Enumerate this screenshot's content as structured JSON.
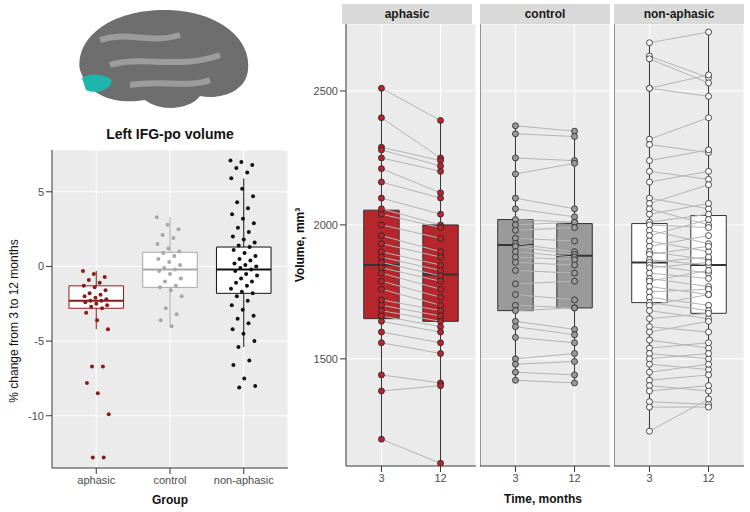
{
  "chart_data": [
    {
      "type": "boxplot",
      "title": "Left IFG-po volume",
      "x_label": "Group",
      "y_label": "% change from 3 to 12 months",
      "categories": [
        "aphasic",
        "control",
        "non-aphasic"
      ],
      "colors": [
        "#8b1a1a",
        "#a8a8a8",
        "#111111"
      ],
      "ylim": [
        -13.5,
        7.8
      ],
      "yticks": [
        -10,
        -5,
        0,
        5
      ],
      "grid": true,
      "boxes": [
        {
          "q1": -2.8,
          "median": -2.3,
          "q3": -1.3,
          "whisker_low": -4.2,
          "whisker_high": -0.3
        },
        {
          "q1": -1.4,
          "median": -0.2,
          "q3": 0.95,
          "whisker_low": -4.0,
          "whisker_high": 3.3
        },
        {
          "q1": -1.8,
          "median": -0.2,
          "q3": 1.3,
          "whisker_low": -5.4,
          "whisker_high": 5.9
        }
      ],
      "values": [
        [
          -0.3,
          -0.5,
          -0.7,
          -0.9,
          -1.1,
          -1.3,
          -1.4,
          -1.6,
          -1.8,
          -1.9,
          -2.0,
          -2.1,
          -2.2,
          -2.3,
          -2.3,
          -2.4,
          -2.5,
          -2.6,
          -2.7,
          -2.8,
          -3.1,
          -3.6,
          -4.2,
          -6.7,
          -6.7,
          -7.8,
          -8.5,
          -9.9,
          -12.8,
          -12.8
        ],
        [
          3.3,
          2.8,
          2.5,
          2.1,
          1.9,
          1.5,
          1.2,
          1.0,
          0.9,
          0.7,
          0.5,
          0.3,
          0.1,
          -0.1,
          -0.2,
          -0.3,
          -0.5,
          -0.8,
          -1.0,
          -1.3,
          -1.4,
          -1.6,
          -2.0,
          -2.8,
          -3.2,
          -3.6,
          -4.0
        ],
        [
          7.1,
          7.0,
          6.8,
          6.6,
          6.3,
          5.9,
          5.2,
          4.7,
          4.3,
          3.9,
          3.5,
          3.2,
          2.9,
          2.6,
          2.3,
          2.0,
          1.8,
          1.6,
          1.4,
          1.3,
          1.1,
          0.9,
          0.7,
          0.5,
          0.4,
          0.2,
          0.1,
          0.0,
          -0.1,
          -0.2,
          -0.3,
          -0.5,
          -0.6,
          -0.8,
          -1.0,
          -1.1,
          -1.3,
          -1.5,
          -1.7,
          -1.8,
          -2.0,
          -2.3,
          -2.6,
          -2.9,
          -3.3,
          -3.5,
          -3.8,
          -4.2,
          -4.5,
          -5.0,
          -5.4,
          -6.3,
          -6.6,
          -7.5,
          -8.0,
          -8.1
        ]
      ]
    },
    {
      "type": "boxplot",
      "facets": [
        "aphasic",
        "control",
        "non-aphasic"
      ],
      "x_label": "Time, months",
      "y_label": "Volume, mm³",
      "categories": [
        "3",
        "12"
      ],
      "colors": [
        "#b5272d",
        "#9a9a9a",
        "#ffffff"
      ],
      "ylim": [
        1100,
        2750
      ],
      "yticks": [
        1500,
        2000,
        2500
      ],
      "grid": true,
      "panels": [
        {
          "boxes": [
            {
              "q1": 1650,
              "median": 1850,
              "q3": 2055,
              "whisker_low": 1200,
              "whisker_high": 2510
            },
            {
              "q1": 1640,
              "median": 1815,
              "q3": 2000,
              "whisker_low": 1110,
              "whisker_high": 2400
            }
          ],
          "values": [
            [
              2510,
              2400,
              2290,
              2280,
              2250,
              2210,
              2160,
              2100,
              2060,
              2040,
              2000,
              1960,
              1930,
              1900,
              1880,
              1860,
              1840,
              1820,
              1790,
              1760,
              1720,
              1700,
              1680,
              1660,
              1640,
              1600,
              1560,
              1440,
              1380,
              1200
            ],
            [
              2390,
              2250,
              2240,
              2220,
              2200,
              2120,
              2100,
              2040,
              2000,
              1990,
              1950,
              1900,
              1880,
              1850,
              1830,
              1810,
              1790,
              1760,
              1730,
              1700,
              1680,
              1660,
              1640,
              1620,
              1600,
              1560,
              1520,
              1410,
              1400,
              1110
            ]
          ]
        },
        {
          "boxes": [
            {
              "q1": 1680,
              "median": 1925,
              "q3": 2020,
              "whisker_low": 1420,
              "whisker_high": 2370
            },
            {
              "q1": 1690,
              "median": 1885,
              "q3": 2005,
              "whisker_low": 1410,
              "whisker_high": 2350
            }
          ],
          "values": [
            [
              2370,
              2340,
              2250,
              2190,
              2100,
              2060,
              2020,
              2000,
              1980,
              1950,
              1930,
              1920,
              1900,
              1880,
              1860,
              1830,
              1780,
              1740,
              1700,
              1680,
              1640,
              1620,
              1580,
              1500,
              1480,
              1450,
              1420
            ],
            [
              2350,
              2330,
              2240,
              2230,
              2060,
              2030,
              2010,
              2010,
              1990,
              1940,
              1900,
              1890,
              1880,
              1870,
              1850,
              1820,
              1790,
              1720,
              1690,
              1690,
              1610,
              1590,
              1560,
              1520,
              1490,
              1440,
              1410
            ]
          ]
        },
        {
          "boxes": [
            {
              "q1": 1710,
              "median": 1860,
              "q3": 2005,
              "whisker_low": 1230,
              "whisker_high": 2680
            },
            {
              "q1": 1670,
              "median": 1850,
              "q3": 2035,
              "whisker_low": 1320,
              "whisker_high": 2720
            }
          ],
          "values": [
            [
              2680,
              2630,
              2620,
              2510,
              2510,
              2320,
              2300,
              2240,
              2200,
              2160,
              2100,
              2080,
              2060,
              2040,
              2010,
              2000,
              1980,
              1960,
              1940,
              1920,
              1900,
              1890,
              1870,
              1860,
              1850,
              1840,
              1820,
              1800,
              1790,
              1770,
              1750,
              1730,
              1710,
              1700,
              1680,
              1650,
              1620,
              1600,
              1570,
              1540,
              1520,
              1500,
              1480,
              1450,
              1420,
              1400,
              1380,
              1340,
              1320,
              1230
            ],
            [
              2720,
              2550,
              2530,
              2560,
              2480,
              2400,
              2270,
              2280,
              2170,
              2200,
              2060,
              2150,
              2000,
              2080,
              2040,
              1990,
              1930,
              2020,
              1900,
              1960,
              1870,
              1920,
              1850,
              1880,
              1820,
              1860,
              1800,
              1770,
              1830,
              1740,
              1760,
              1700,
              1680,
              1740,
              1650,
              1670,
              1600,
              1640,
              1540,
              1560,
              1500,
              1520,
              1460,
              1480,
              1440,
              1380,
              1400,
              1330,
              1320,
              1350
            ]
          ]
        }
      ]
    }
  ]
}
